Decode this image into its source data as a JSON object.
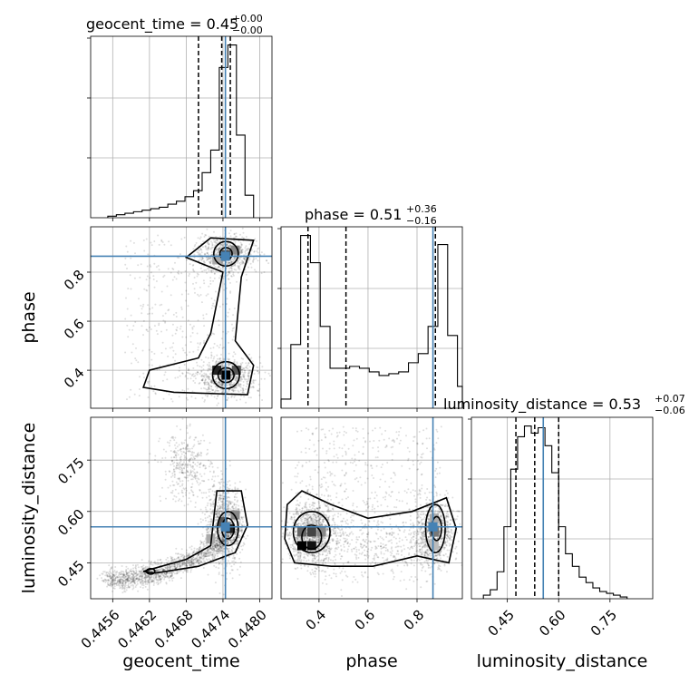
{
  "chart_data": {
    "type": "corner",
    "parameters": [
      "geocent_time",
      "phase",
      "luminosity_distance"
    ],
    "truth_values": {
      "geocent_time": 0.44744,
      "phase": 0.865,
      "luminosity_distance": 0.555
    },
    "axis_ranges": {
      "geocent_time": [
        0.44524,
        0.4482
      ],
      "phase": [
        0.245,
        0.985
      ],
      "luminosity_distance": [
        0.345,
        0.875
      ]
    },
    "ticks": {
      "geocent_time": [
        0.4456,
        0.4462,
        0.4468,
        0.4474,
        0.448
      ],
      "phase": [
        0.4,
        0.6,
        0.8
      ],
      "luminosity_distance": [
        0.45,
        0.6,
        0.75
      ]
    },
    "tick_labels": {
      "geocent_time": [
        "0.4456",
        "0.4462",
        "0.4468",
        "0.4474",
        "0.4480"
      ],
      "phase": [
        "0.4",
        "0.6",
        "0.8"
      ],
      "luminosity_distance": [
        "0.45",
        "0.60",
        "0.75"
      ]
    },
    "axis_labels": {
      "geocent_time": "geocent_time",
      "phase": "phase",
      "luminosity_distance": "luminosity_distance"
    },
    "titles": [
      {
        "param": "geocent_time",
        "text": "geocent_time = 0.45",
        "plus": "+0.00",
        "minus": "−0.00"
      },
      {
        "param": "phase",
        "text": "phase = 0.51",
        "plus": "+0.36",
        "minus": "−0.16"
      },
      {
        "param": "luminosity_distance",
        "text": "luminosity_distance = 0.53",
        "plus": "+0.07",
        "minus": "−0.06"
      }
    ],
    "quantiles": {
      "geocent_time": [
        0.447,
        0.44738,
        0.44752
      ],
      "phase": [
        0.355,
        0.51,
        0.875
      ],
      "luminosity_distance": [
        0.475,
        0.53,
        0.6
      ]
    },
    "histograms": {
      "geocent_time": {
        "edges": [
          0.44552,
          0.44566,
          0.4458,
          0.44594,
          0.44608,
          0.44622,
          0.44636,
          0.4465,
          0.44664,
          0.44678,
          0.44692,
          0.44706,
          0.4472,
          0.44734,
          0.44748,
          0.44762,
          0.44776,
          0.4479
        ],
        "counts": [
          1,
          2,
          3,
          4,
          5,
          6,
          7,
          9,
          11,
          14,
          18,
          30,
          45,
          100,
          115,
          55,
          15
        ]
      },
      "phase": {
        "edges": [
          0.245,
          0.285,
          0.325,
          0.365,
          0.405,
          0.445,
          0.485,
          0.525,
          0.565,
          0.605,
          0.645,
          0.685,
          0.725,
          0.765,
          0.805,
          0.845,
          0.885,
          0.925,
          0.965,
          0.985
        ],
        "counts": [
          5,
          35,
          95,
          80,
          45,
          22,
          22,
          23,
          22,
          20,
          18,
          19,
          20,
          25,
          30,
          45,
          90,
          40,
          12
        ]
      },
      "luminosity_distance": {
        "edges": [
          0.38,
          0.4,
          0.42,
          0.44,
          0.46,
          0.48,
          0.5,
          0.52,
          0.54,
          0.56,
          0.58,
          0.6,
          0.62,
          0.64,
          0.66,
          0.68,
          0.7,
          0.72,
          0.74,
          0.76,
          0.78,
          0.8
        ],
        "counts": [
          2,
          5,
          15,
          40,
          72,
          90,
          96,
          92,
          95,
          85,
          70,
          40,
          25,
          18,
          12,
          9,
          6,
          4,
          3,
          2,
          1
        ]
      }
    },
    "truth_color": "#4682b4"
  }
}
